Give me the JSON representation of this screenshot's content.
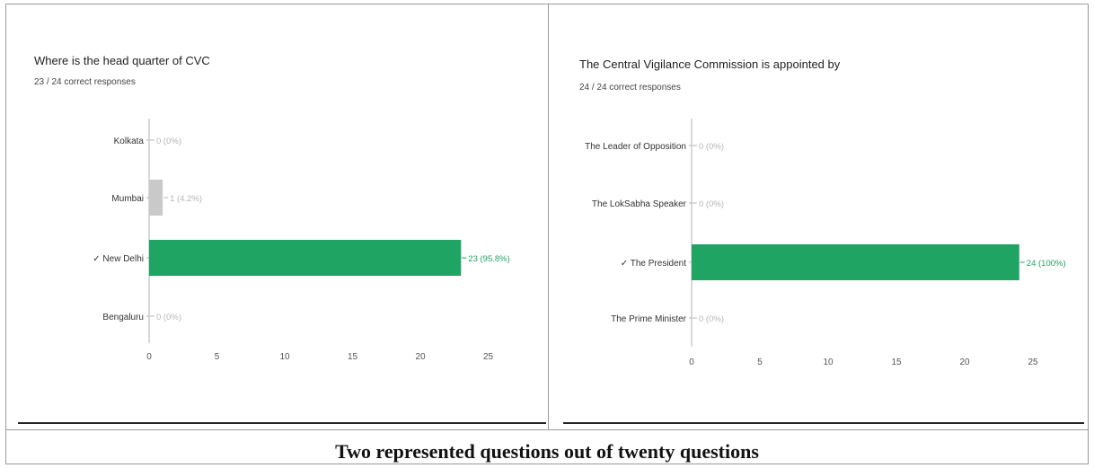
{
  "caption": "Two represented questions out of twenty questions",
  "chart_data": [
    {
      "type": "bar",
      "orientation": "horizontal",
      "title": "Where is the head quarter of CVC",
      "subtitle": "23 / 24 correct responses",
      "categories": [
        "Kolkata",
        "Mumbai",
        "✓ New Delhi",
        "Bengaluru"
      ],
      "values": [
        0,
        1,
        23,
        0
      ],
      "data_labels": [
        "0 (0%)",
        "1 (4.2%)",
        "23 (95.8%)",
        "0 (0%)"
      ],
      "correct_index": 2,
      "xticks": [
        "0",
        "5",
        "10",
        "15",
        "20",
        "25"
      ],
      "xlim": [
        0,
        25
      ],
      "colors": {
        "correct": "#1fa463",
        "incorrect": "#c9c9c9",
        "axis": "#b0b0b0",
        "label_muted": "#b5b5b5"
      }
    },
    {
      "type": "bar",
      "orientation": "horizontal",
      "title": "The Central Vigilance Commission is appointed by",
      "subtitle": "24 / 24 correct responses",
      "categories": [
        "The Leader of Opposition",
        "The LokSabha Speaker",
        "✓ The President",
        "The Prime Minister"
      ],
      "values": [
        0,
        0,
        24,
        0
      ],
      "data_labels": [
        "0 (0%)",
        "0 (0%)",
        "24 (100%)",
        "0 (0%)"
      ],
      "correct_index": 2,
      "xticks": [
        "0",
        "5",
        "10",
        "15",
        "20",
        "25"
      ],
      "xlim": [
        0,
        25
      ],
      "colors": {
        "correct": "#1fa463",
        "incorrect": "#c9c9c9",
        "axis": "#b0b0b0",
        "label_muted": "#b5b5b5"
      }
    }
  ]
}
